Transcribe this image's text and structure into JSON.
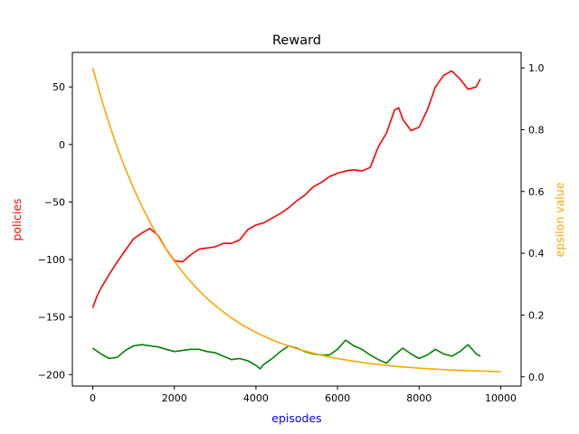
{
  "chart_data": {
    "type": "line",
    "title": "Reward",
    "xlabel": "episodes",
    "ylabel_left": "policies",
    "ylabel_right": "epsilon value",
    "xlim": [
      -500,
      10500
    ],
    "ylim_left": [
      -210,
      80
    ],
    "ylim_right": [
      -0.03,
      1.05
    ],
    "x_ticks": [
      0,
      2000,
      4000,
      6000,
      8000,
      10000
    ],
    "y_left_ticks": [
      -200,
      -150,
      -100,
      -50,
      0,
      50
    ],
    "y_right_ticks": [
      0.0,
      0.2,
      0.4,
      0.6,
      0.8,
      1.0
    ],
    "grid": false,
    "colors": {
      "series_red": "#ff0000",
      "series_green": "#008000",
      "series_orange": "#ffa500",
      "xlabel": "#0000ff",
      "ylabel_left": "#ff0000",
      "ylabel_right": "#ffa500"
    },
    "series": [
      {
        "axis": "left",
        "color": "#ff0000",
        "x": [
          0,
          100,
          200,
          400,
          600,
          800,
          1000,
          1200,
          1400,
          1600,
          1800,
          2000,
          2200,
          2400,
          2600,
          2800,
          3000,
          3200,
          3400,
          3600,
          3800,
          4000,
          4200,
          4400,
          4600,
          4800,
          5000,
          5200,
          5400,
          5600,
          5800,
          6000,
          6200,
          6400,
          6600,
          6800,
          7000,
          7200,
          7400,
          7500,
          7600,
          7800,
          8000,
          8200,
          8400,
          8600,
          8800,
          9000,
          9200,
          9400,
          9500
        ],
        "y": [
          -142,
          -132,
          -125,
          -113,
          -102,
          -92,
          -82,
          -77,
          -73,
          -79,
          -91,
          -101,
          -102,
          -96,
          -91,
          -90,
          -89,
          -86,
          -86,
          -83,
          -74,
          -70,
          -68,
          -64,
          -60,
          -55,
          -49,
          -44,
          -37,
          -33,
          -28,
          -25,
          -23,
          -22,
          -23,
          -20,
          -2,
          10,
          30,
          32,
          22,
          12,
          15,
          30,
          50,
          60,
          64,
          57,
          48,
          50,
          57
        ]
      },
      {
        "axis": "left",
        "color": "#008000",
        "x": [
          0,
          200,
          400,
          600,
          800,
          1000,
          1200,
          1400,
          1600,
          1800,
          2000,
          2200,
          2400,
          2600,
          2800,
          3000,
          3200,
          3400,
          3600,
          3800,
          4000,
          4100,
          4200,
          4400,
          4600,
          4800,
          5000,
          5200,
          5400,
          5600,
          5800,
          6000,
          6200,
          6400,
          6600,
          6800,
          7000,
          7200,
          7400,
          7600,
          7800,
          8000,
          8200,
          8400,
          8600,
          8800,
          9000,
          9200,
          9400,
          9500
        ],
        "y": [
          -177,
          -182,
          -186,
          -185,
          -179,
          -175,
          -174,
          -175,
          -176,
          -178,
          -180,
          -179,
          -178,
          -178,
          -180,
          -181,
          -184,
          -187,
          -186,
          -188,
          -192,
          -195,
          -191,
          -186,
          -180,
          -175,
          -177,
          -180,
          -182,
          -183,
          -183,
          -178,
          -170,
          -175,
          -178,
          -183,
          -187,
          -190,
          -183,
          -177,
          -182,
          -186,
          -183,
          -178,
          -182,
          -184,
          -180,
          -174,
          -182,
          -184
        ]
      },
      {
        "axis": "right",
        "color": "#ffa500",
        "function": "exp_decay",
        "x_start": 0,
        "x_end": 10000,
        "y_start": 1.0,
        "y_end": 0.01,
        "decay_rate": 0.0005
      }
    ]
  }
}
